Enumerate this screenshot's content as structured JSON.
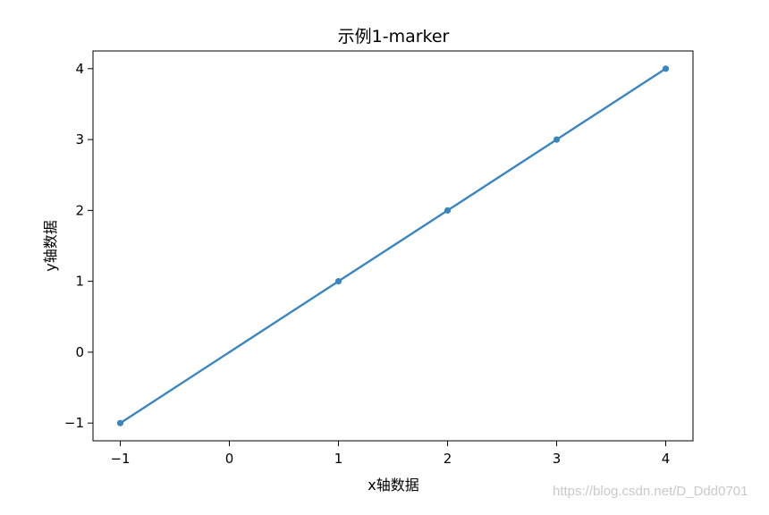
{
  "chart_data": {
    "type": "line",
    "title": "示例1-marker",
    "xlabel": "x轴数据",
    "ylabel": "y轴数据",
    "x": [
      -1,
      1,
      2,
      3,
      4
    ],
    "series": [
      {
        "values": [
          -1,
          1,
          2,
          3,
          4
        ],
        "color": "#3b86c0",
        "marker": "point"
      }
    ],
    "xlim": [
      -1.25,
      4.25
    ],
    "ylim": [
      -1.25,
      4.25
    ],
    "xticks": [
      -1,
      0,
      1,
      2,
      3,
      4
    ],
    "yticks": [
      -1,
      0,
      1,
      2,
      3,
      4
    ],
    "xtick_labels": [
      "−1",
      "0",
      "1",
      "2",
      "3",
      "4"
    ],
    "ytick_labels": [
      "−1",
      "0",
      "1",
      "2",
      "3",
      "4"
    ],
    "grid": false,
    "legend": "none"
  },
  "watermark": "https://blog.csdn.net/D_Ddd0701"
}
